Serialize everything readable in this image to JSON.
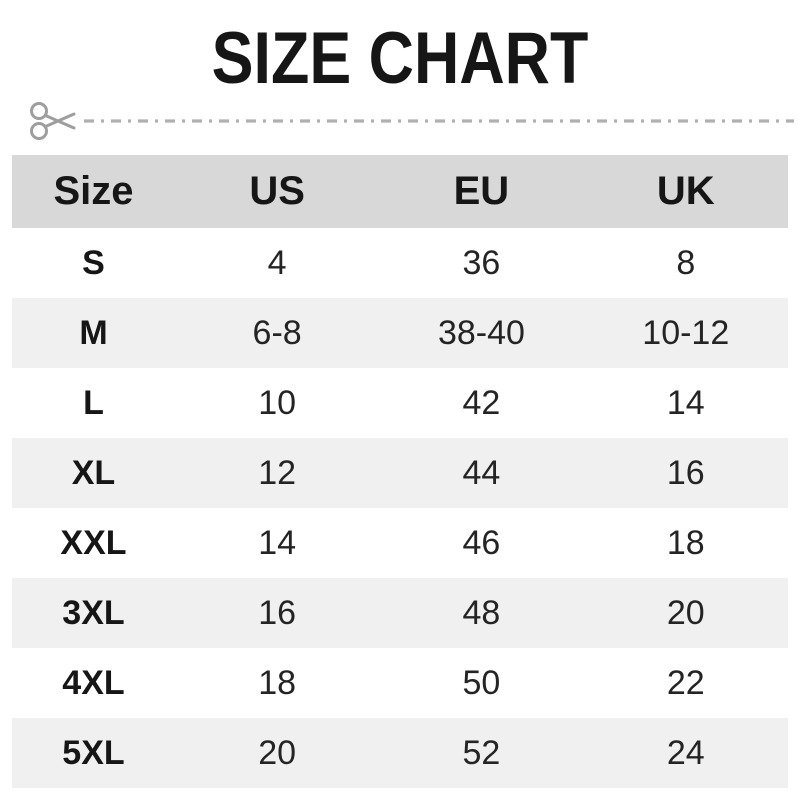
{
  "title": "SIZE CHART",
  "cut_line": {
    "icon": "scissors-icon",
    "style": "dash-dot"
  },
  "table": {
    "headers": [
      "Size",
      "US",
      "EU",
      "UK"
    ],
    "rows": [
      {
        "size": "S",
        "us": "4",
        "eu": "36",
        "uk": "8"
      },
      {
        "size": "M",
        "us": "6-8",
        "eu": "38-40",
        "uk": "10-12"
      },
      {
        "size": "L",
        "us": "10",
        "eu": "42",
        "uk": "14"
      },
      {
        "size": "XL",
        "us": "12",
        "eu": "44",
        "uk": "16"
      },
      {
        "size": "XXL",
        "us": "14",
        "eu": "46",
        "uk": "18"
      },
      {
        "size": "3XL",
        "us": "16",
        "eu": "48",
        "uk": "20"
      },
      {
        "size": "4XL",
        "us": "18",
        "eu": "50",
        "uk": "22"
      },
      {
        "size": "5XL",
        "us": "20",
        "eu": "52",
        "uk": "24"
      }
    ]
  },
  "chart_data": {
    "type": "table",
    "title": "SIZE CHART",
    "columns": [
      "Size",
      "US",
      "EU",
      "UK"
    ],
    "rows": [
      [
        "S",
        "4",
        "36",
        "8"
      ],
      [
        "M",
        "6-8",
        "38-40",
        "10-12"
      ],
      [
        "L",
        "10",
        "42",
        "14"
      ],
      [
        "XL",
        "12",
        "44",
        "16"
      ],
      [
        "XXL",
        "14",
        "46",
        "18"
      ],
      [
        "3XL",
        "16",
        "48",
        "20"
      ],
      [
        "4XL",
        "18",
        "50",
        "22"
      ],
      [
        "5XL",
        "20",
        "52",
        "24"
      ]
    ],
    "layout_hints": {
      "header_shaded": true,
      "alternating_rows": true,
      "all_cells_centered": true
    }
  },
  "colors": {
    "header_bg": "#d8d8d8",
    "row_alt_bg": "#f0f0f0",
    "text": "#161616",
    "value_text": "#242424",
    "cut_gray": "#a6a6a6"
  }
}
